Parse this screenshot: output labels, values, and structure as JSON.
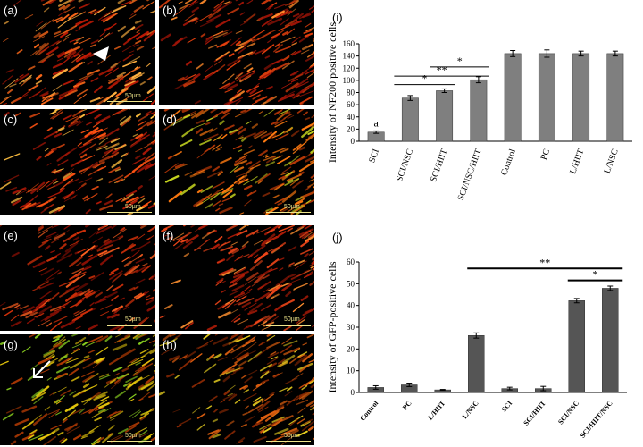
{
  "panels": [
    {
      "label": "(a)",
      "scale": "50µm",
      "colors": [
        "#c21a06",
        "#ff6a1a"
      ],
      "accent": "#ffb040"
    },
    {
      "label": "(b)",
      "scale": "",
      "colors": [
        "#a31508",
        "#e8410e"
      ],
      "accent": "#ff8a2a"
    },
    {
      "label": "(c)",
      "scale": "50µm",
      "colors": [
        "#b01808",
        "#ff5212"
      ],
      "accent": "#ffc040"
    },
    {
      "label": "(d)",
      "scale": "50µm",
      "colors": [
        "#b83808",
        "#ff7a10"
      ],
      "accent": "#c8d820"
    },
    {
      "label": "(e)",
      "scale": "50µm",
      "colors": [
        "#8e1005",
        "#d0300a"
      ],
      "accent": "#ff6020"
    },
    {
      "label": "(f)",
      "scale": "50µm",
      "colors": [
        "#b01c08",
        "#f4481a"
      ],
      "accent": "#ff9030"
    },
    {
      "label": "(g)",
      "scale": "50µm",
      "colors": [
        "#b03a04",
        "#e8c80c"
      ],
      "accent": "#8ad020"
    },
    {
      "label": "(h)",
      "scale": "50µm",
      "colors": [
        "#8e2a04",
        "#e06010"
      ],
      "accent": "#e8d020"
    }
  ],
  "chart_data": [
    {
      "panel_label": "(i)",
      "type": "bar",
      "ylabel": "Intensity of NF200 positive cells",
      "ylim": [
        0,
        160
      ],
      "yticks": [
        0,
        20,
        40,
        60,
        80,
        100,
        120,
        140,
        160
      ],
      "categories": [
        "SCI",
        "SCI/NSC",
        "SCI/HIIT",
        "SCI/NSC/HIIT",
        "Control",
        "PC",
        "L/HIIT",
        "L/NSC"
      ],
      "values": [
        15,
        71,
        83,
        101,
        144,
        144,
        144,
        144
      ],
      "errors": [
        2,
        4,
        3,
        5,
        5,
        6,
        4,
        4
      ],
      "bar_annotations": [
        {
          "category": "SCI",
          "text": "a"
        }
      ],
      "significance": [
        {
          "from": "SCI/NSC",
          "to": "SCI/HIIT",
          "text": "*"
        },
        {
          "from": "SCI/NSC",
          "to": "SCI/NSC/HIIT",
          "text": "**"
        },
        {
          "from": "SCI/HIIT",
          "to": "SCI/NSC/HIIT",
          "text": "*"
        }
      ],
      "bar_color": "#7f7f7f"
    },
    {
      "panel_label": "(j)",
      "type": "bar",
      "ylabel": "Intensity of GFP-positive cells",
      "ylim": [
        0,
        60
      ],
      "yticks": [
        0,
        10,
        20,
        30,
        40,
        50,
        60
      ],
      "categories": [
        "Control",
        "PC",
        "L/HIIT",
        "L/NSC",
        "SCI",
        "SCI/HIIT",
        "SCI/NSC",
        "SCI/HIIT/NSC"
      ],
      "values": [
        2.3,
        3.5,
        1.2,
        26.2,
        1.8,
        1.8,
        42.2,
        47.9
      ],
      "errors": [
        0.8,
        0.8,
        0.2,
        1.2,
        0.6,
        1.0,
        1.0,
        1.0
      ],
      "significance": [
        {
          "from": "L/NSC",
          "to": "SCI/HIIT/NSC",
          "text": "**"
        },
        {
          "from": "SCI/NSC",
          "to": "SCI/HIIT/NSC",
          "text": "*"
        }
      ],
      "bar_color": "#555555"
    }
  ]
}
